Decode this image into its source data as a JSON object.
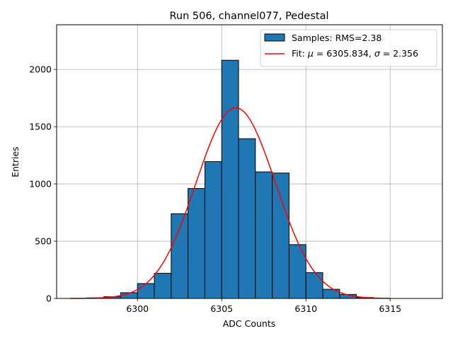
{
  "chart_data": {
    "type": "bar",
    "title": "Run 506, channel077, Pedestal",
    "xlabel": "ADC Counts",
    "ylabel": "Entries",
    "xlim": [
      6295.2,
      6318.1
    ],
    "ylim": [
      0,
      2390
    ],
    "xticks": [
      6300,
      6305,
      6310,
      6315
    ],
    "yticks": [
      0,
      500,
      1000,
      1500,
      2000
    ],
    "grid": true,
    "legend_position": "top-right",
    "histogram": {
      "name": "Samples: RMS=2.38",
      "color": "#1f77b4",
      "edgecolor": "#000000",
      "bin_width": 1,
      "bins": [
        {
          "x0": 6297,
          "count": 5
        },
        {
          "x0": 6298,
          "count": 15
        },
        {
          "x0": 6299,
          "count": 50
        },
        {
          "x0": 6300,
          "count": 130
        },
        {
          "x0": 6301,
          "count": 220
        },
        {
          "x0": 6302,
          "count": 740
        },
        {
          "x0": 6303,
          "count": 960
        },
        {
          "x0": 6304,
          "count": 1195
        },
        {
          "x0": 6305,
          "count": 2080
        },
        {
          "x0": 6306,
          "count": 1395
        },
        {
          "x0": 6307,
          "count": 1105
        },
        {
          "x0": 6308,
          "count": 1095
        },
        {
          "x0": 6309,
          "count": 470
        },
        {
          "x0": 6310,
          "count": 225
        },
        {
          "x0": 6311,
          "count": 80
        },
        {
          "x0": 6312,
          "count": 35
        },
        {
          "x0": 6313,
          "count": 8
        }
      ]
    },
    "fit": {
      "name_prefix": "Fit: ",
      "mu_symbol": "μ",
      "mu_text": " = 6305.834, ",
      "sigma_symbol": "σ",
      "sigma_text": " = 2.356",
      "mu": 6305.834,
      "sigma": 2.356,
      "amplitude": 1665,
      "x_range": [
        6296,
        6315
      ],
      "color": "#ff0000"
    }
  }
}
